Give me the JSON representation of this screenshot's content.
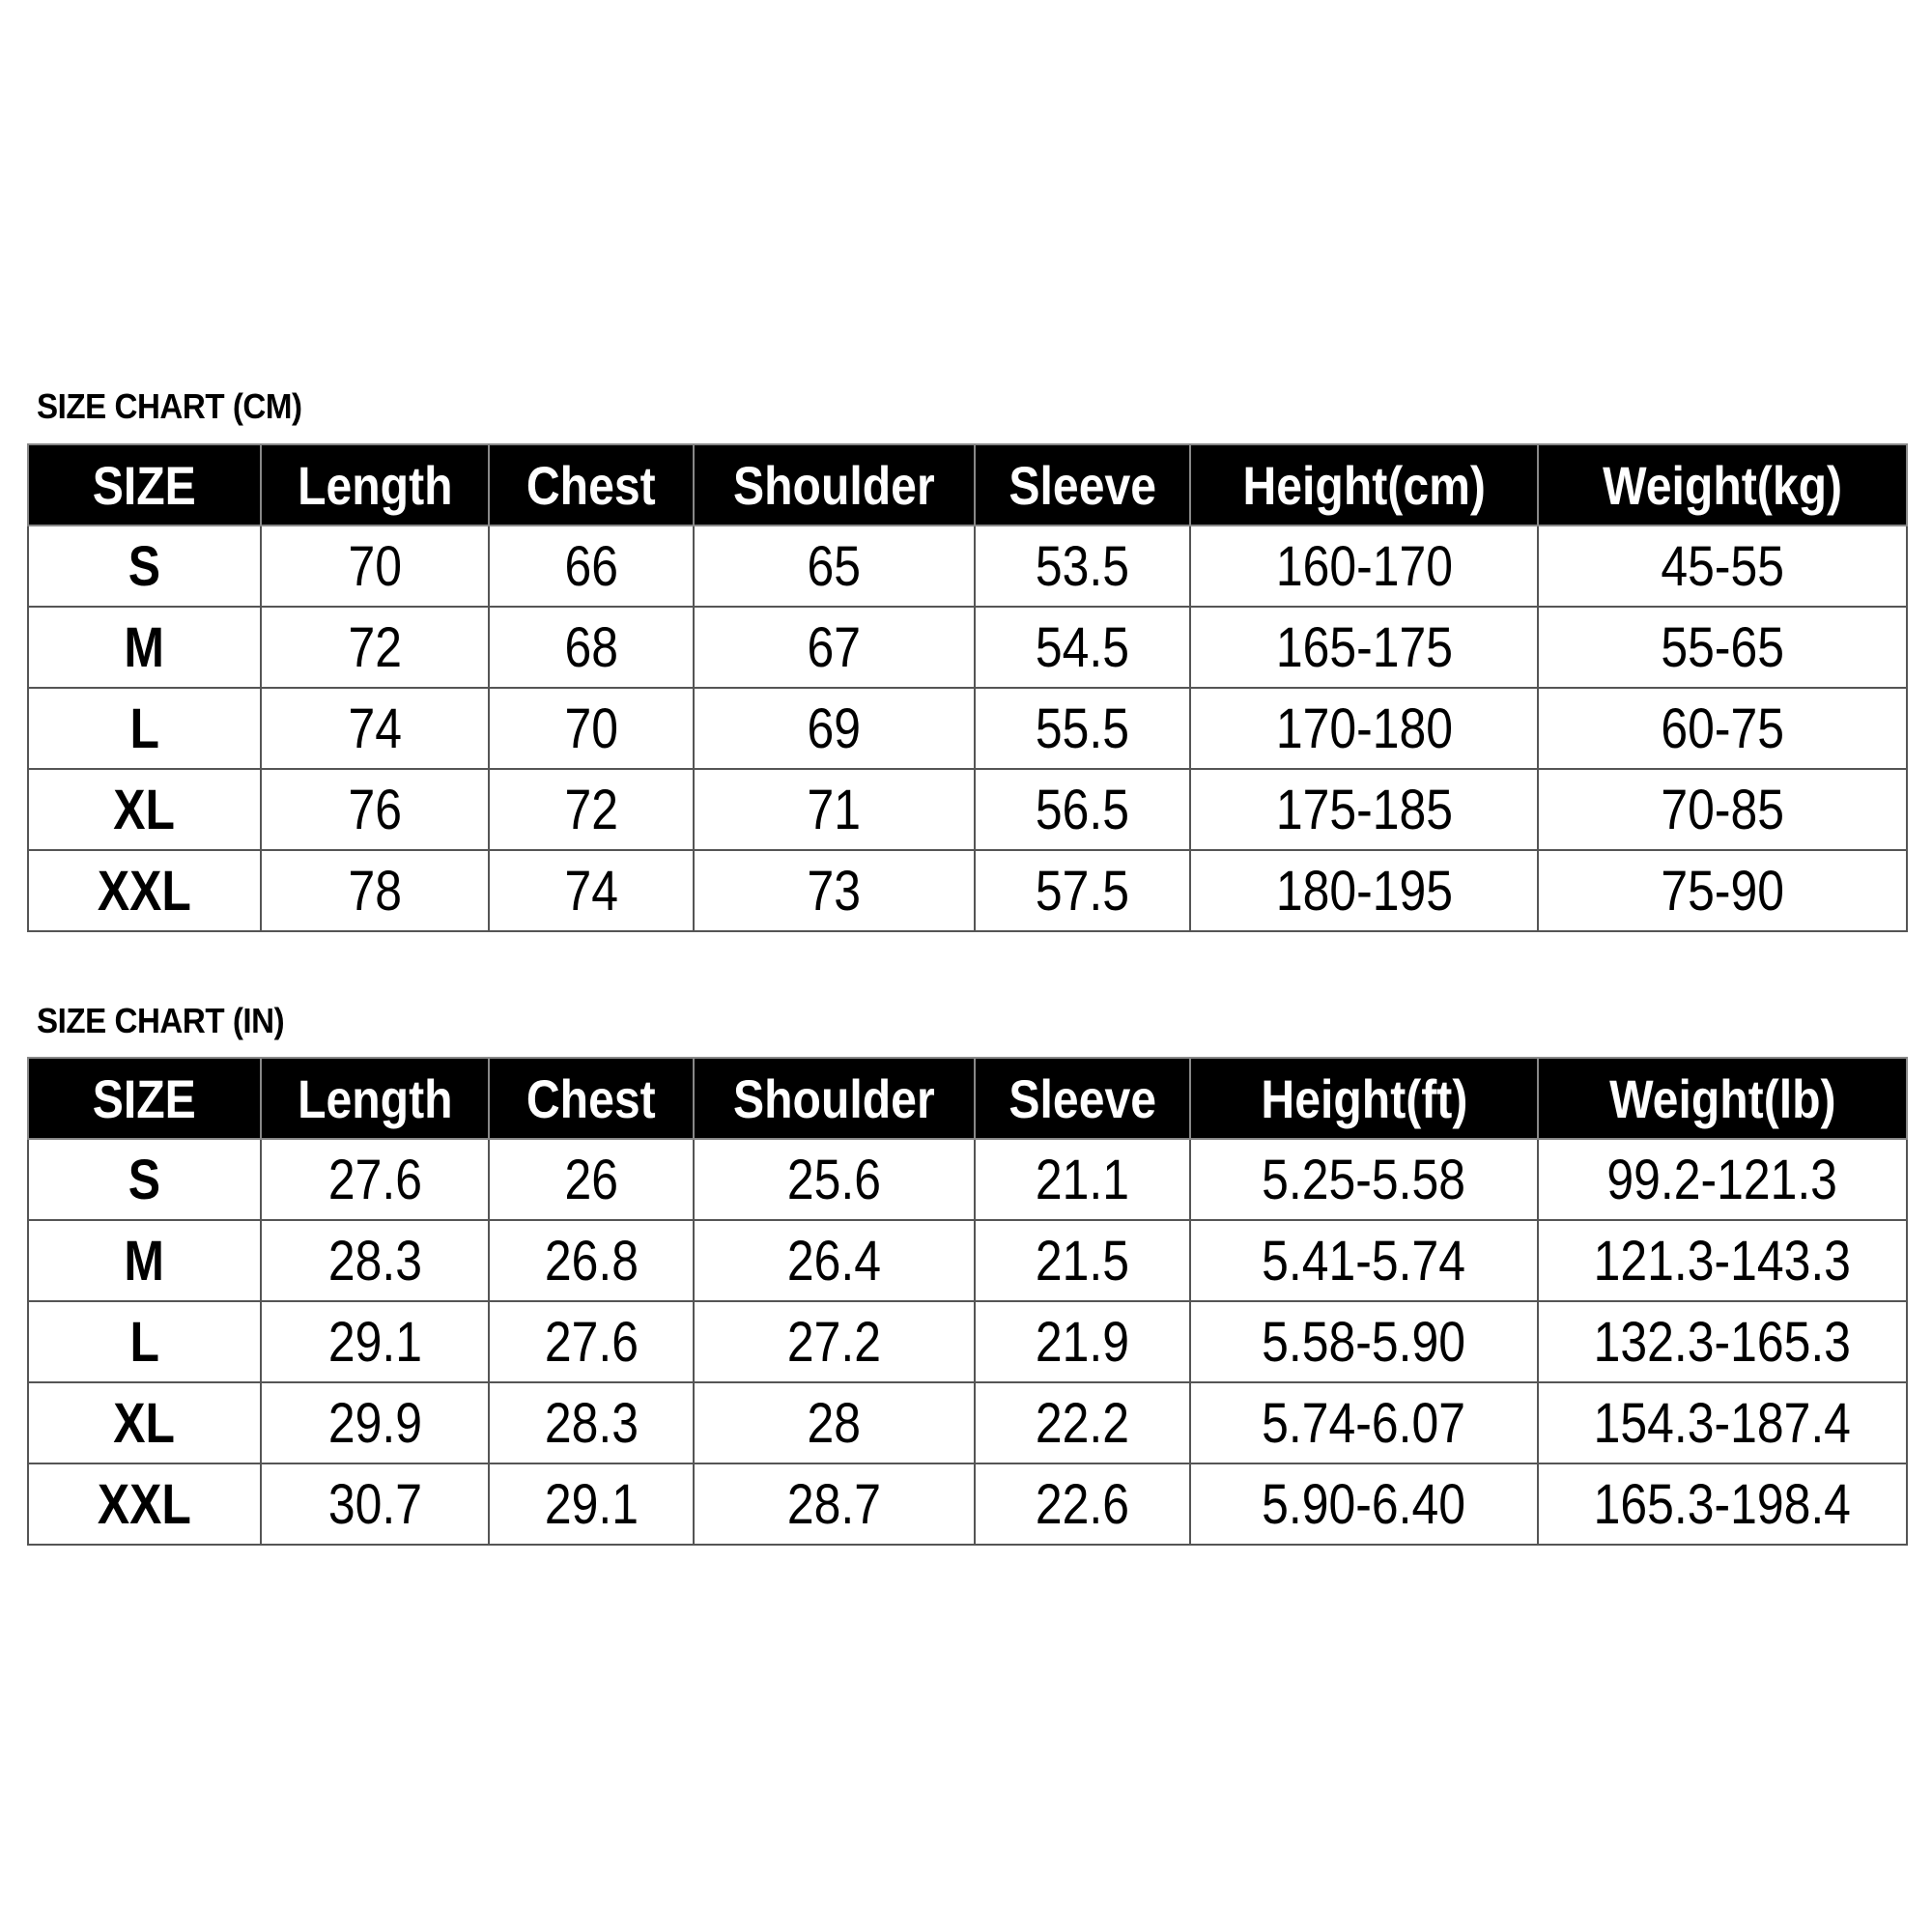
{
  "tables": [
    {
      "title": "SIZE CHART  (CM)",
      "headers": [
        "SIZE",
        "Length",
        "Chest",
        "Shoulder",
        "Sleeve",
        "Height(cm)",
        "Weight(kg)"
      ],
      "rows": [
        [
          "S",
          "70",
          "66",
          "65",
          "53.5",
          "160-170",
          "45-55"
        ],
        [
          "M",
          "72",
          "68",
          "67",
          "54.5",
          "165-175",
          "55-65"
        ],
        [
          "L",
          "74",
          "70",
          "69",
          "55.5",
          "170-180",
          "60-75"
        ],
        [
          "XL",
          "76",
          "72",
          "71",
          "56.5",
          "175-185",
          "70-85"
        ],
        [
          "XXL",
          "78",
          "74",
          "73",
          "57.5",
          "180-195",
          "75-90"
        ]
      ]
    },
    {
      "title": "SIZE CHART  (IN)",
      "headers": [
        "SIZE",
        "Length",
        "Chest",
        "Shoulder",
        "Sleeve",
        "Height(ft)",
        "Weight(lb)"
      ],
      "rows": [
        [
          "S",
          "27.6",
          "26",
          "25.6",
          "21.1",
          "5.25-5.58",
          "99.2-121.3"
        ],
        [
          "M",
          "28.3",
          "26.8",
          "26.4",
          "21.5",
          "5.41-5.74",
          "121.3-143.3"
        ],
        [
          "L",
          "29.1",
          "27.6",
          "27.2",
          "21.9",
          "5.58-5.90",
          "132.3-165.3"
        ],
        [
          "XL",
          "29.9",
          "28.3",
          "28",
          "22.2",
          "5.74-6.07",
          "154.3-187.4"
        ],
        [
          "XXL",
          "30.7",
          "29.1",
          "28.7",
          "22.6",
          "5.90-6.40",
          "165.3-198.4"
        ]
      ]
    }
  ]
}
